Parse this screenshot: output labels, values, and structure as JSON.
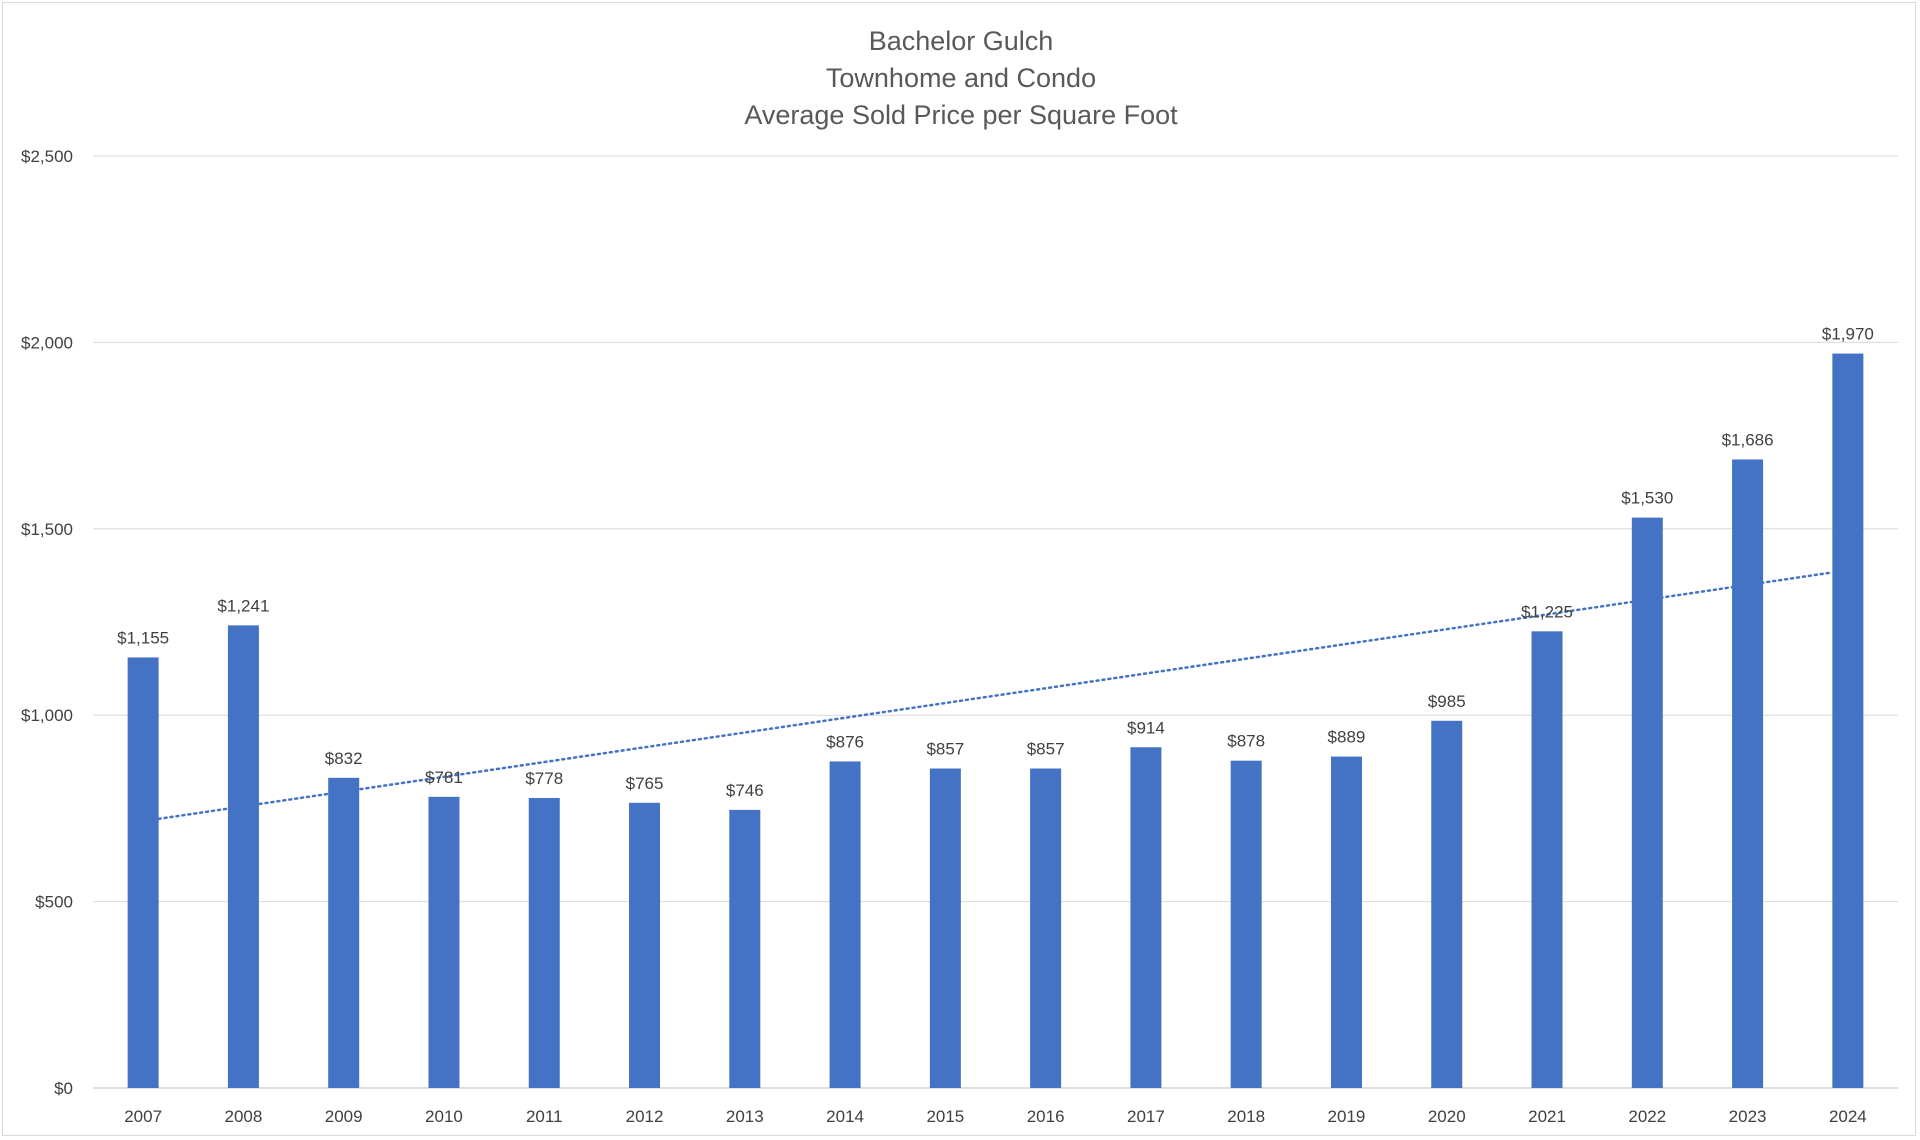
{
  "chart_data": {
    "type": "bar",
    "title_lines": [
      "Bachelor Gulch",
      "Townhome and Condo",
      "Average Sold Price per Square Foot"
    ],
    "categories": [
      "2007",
      "2008",
      "2009",
      "2010",
      "2011",
      "2012",
      "2013",
      "2014",
      "2015",
      "2016",
      "2017",
      "2018",
      "2019",
      "2020",
      "2021",
      "2022",
      "2023",
      "2024"
    ],
    "values": [
      1155,
      1241,
      832,
      781,
      778,
      765,
      746,
      876,
      857,
      857,
      914,
      878,
      889,
      985,
      1225,
      1530,
      1686,
      1970
    ],
    "data_labels": [
      "$1,155",
      "$1,241",
      "$832",
      "$781",
      "$778",
      "$765",
      "$746",
      "$876",
      "$857",
      "$857",
      "$914",
      "$878",
      "$889",
      "$985",
      "$1,225",
      "$1,530",
      "$1,686",
      "$1,970"
    ],
    "ylim": [
      0,
      2500
    ],
    "yticks": [
      0,
      500,
      1000,
      1500,
      2000,
      2500
    ],
    "ytick_labels": [
      "$0",
      "$500",
      "$1,000",
      "$1,500",
      "$2,000",
      "$2,500"
    ],
    "trendline": {
      "type": "linear",
      "style": "dotted",
      "start_value": 722,
      "end_value": 1383
    },
    "grid": true,
    "legend": "none",
    "bar_color": "#4472c4",
    "trend_color": "#4472c4"
  }
}
